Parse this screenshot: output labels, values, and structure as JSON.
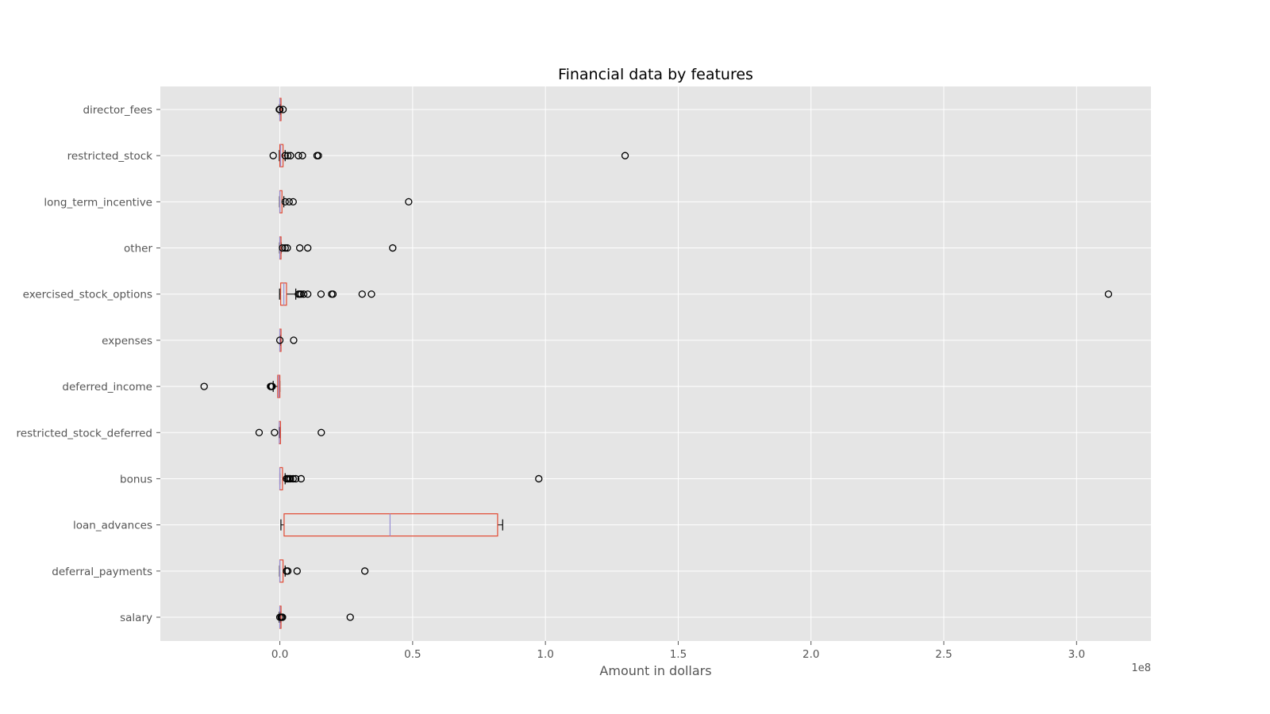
{
  "chart_data": {
    "type": "boxplot",
    "orientation": "horizontal",
    "title": "Financial data by features",
    "xlabel": "Amount in dollars",
    "ylabel": "",
    "x_offset_label": "1e8",
    "x_scale": 100000000,
    "xlim": [
      -0.45,
      3.28
    ],
    "xticks": [
      0.0,
      0.5,
      1.0,
      1.5,
      2.0,
      2.5,
      3.0
    ],
    "xtick_labels": [
      "0.0",
      "0.5",
      "1.0",
      "1.5",
      "2.0",
      "2.5",
      "3.0"
    ],
    "grid": true,
    "style": "ggplot",
    "colors": {
      "background": "#e5e5e5",
      "grid": "#ffffff",
      "box": "#e24a33",
      "median": "#988ed5",
      "whisker": "#000000",
      "flier": "#000000"
    },
    "categories": [
      "salary",
      "deferral_payments",
      "loan_advances",
      "bonus",
      "restricted_stock_deferred",
      "deferred_income",
      "expenses",
      "exercised_stock_options",
      "other",
      "long_term_incentive",
      "restricted_stock",
      "director_fees"
    ],
    "boxes": [
      {
        "name": "salary",
        "whislo": -0.002,
        "q1": 0.0,
        "median": 0.0,
        "q3": 0.0,
        "whishi": 0.003,
        "fliers": [
          0.0,
          0.005,
          0.008,
          0.01,
          0.265
        ]
      },
      {
        "name": "deferral_payments",
        "whislo": -0.001,
        "q1": 0.0,
        "median": 0.0,
        "q3": 0.012,
        "whishi": 0.02,
        "fliers": [
          0.025,
          0.03,
          0.065,
          0.32
        ]
      },
      {
        "name": "loan_advances",
        "whislo": 0.004,
        "q1": 0.016,
        "median": 0.415,
        "q3": 0.82,
        "whishi": 0.839,
        "fliers": []
      },
      {
        "name": "bonus",
        "whislo": 0.0,
        "q1": 0.0,
        "median": 0.0,
        "q3": 0.01,
        "whishi": 0.02,
        "fliers": [
          0.025,
          0.03,
          0.035,
          0.04,
          0.05,
          0.06,
          0.08,
          0.975
        ]
      },
      {
        "name": "restricted_stock_deferred",
        "whislo": -0.003,
        "q1": -0.002,
        "median": -0.002,
        "q3": 0.0,
        "whishi": 0.0,
        "fliers": [
          -0.078,
          -0.02,
          0.156
        ]
      },
      {
        "name": "deferred_income",
        "whislo": -0.025,
        "q1": -0.008,
        "median": -0.004,
        "q3": 0.0,
        "whishi": 0.0,
        "fliers": [
          -0.285,
          -0.035,
          -0.032,
          -0.029
        ]
      },
      {
        "name": "expenses",
        "whislo": 0.0,
        "q1": 0.0,
        "median": 0.0,
        "q3": 0.001,
        "whishi": 0.002,
        "fliers": [
          0.0,
          0.052
        ]
      },
      {
        "name": "exercised_stock_options",
        "whislo": -0.001,
        "q1": 0.003,
        "median": 0.015,
        "q3": 0.025,
        "whishi": 0.06,
        "fliers": [
          0.07,
          0.075,
          0.08,
          0.09,
          0.105,
          0.155,
          0.195,
          0.2,
          0.31,
          0.345,
          3.12
        ]
      },
      {
        "name": "other",
        "whislo": -0.001,
        "q1": 0.0,
        "median": 0.0,
        "q3": 0.002,
        "whishi": 0.005,
        "fliers": [
          0.01,
          0.02,
          0.028,
          0.075,
          0.105,
          0.425
        ]
      },
      {
        "name": "long_term_incentive",
        "whislo": -0.001,
        "q1": 0.0,
        "median": 0.0,
        "q3": 0.008,
        "whishi": 0.015,
        "fliers": [
          0.02,
          0.035,
          0.05,
          0.485
        ]
      },
      {
        "name": "restricted_stock",
        "whislo": -0.002,
        "q1": 0.0,
        "median": 0.003,
        "q3": 0.012,
        "whishi": 0.02,
        "fliers": [
          -0.025,
          0.02,
          0.03,
          0.04,
          0.07,
          0.085,
          0.14,
          0.145,
          1.3
        ]
      },
      {
        "name": "director_fees",
        "whislo": -0.001,
        "q1": 0.0,
        "median": 0.0,
        "q3": 0.001,
        "whishi": 0.001,
        "fliers": [
          -0.002,
          0.0,
          0.012
        ]
      }
    ]
  }
}
